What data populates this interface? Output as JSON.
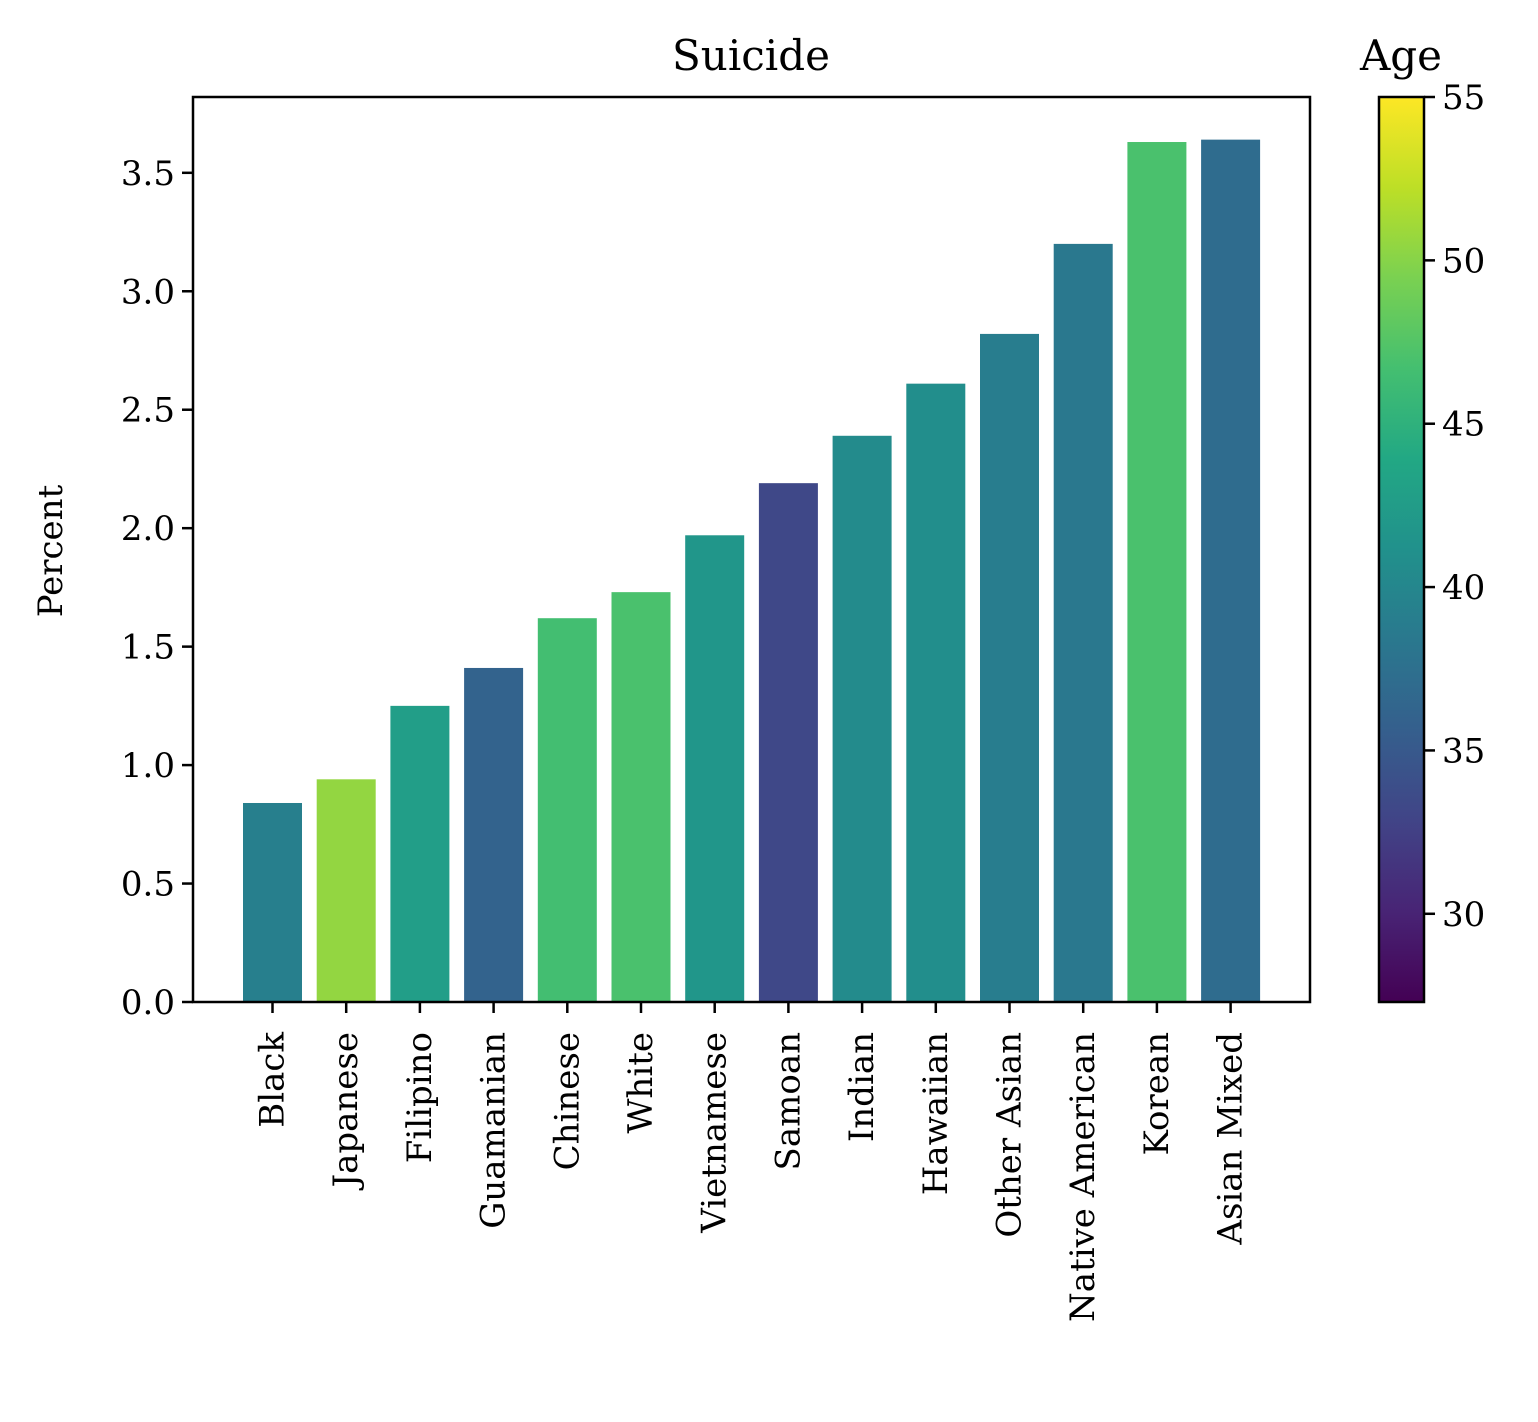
{
  "chart_data": {
    "type": "bar",
    "title": "Suicide",
    "xlabel": "",
    "ylabel": "Percent",
    "ylim": [
      0,
      3.82
    ],
    "yticks": [
      "0.0",
      "0.5",
      "1.0",
      "1.5",
      "2.0",
      "2.5",
      "3.0",
      "3.5"
    ],
    "grid": false,
    "categories": [
      "Black",
      "Japanese",
      "Filipino",
      "Guamanian",
      "Chinese",
      "White",
      "Vietnamese",
      "Samoan",
      "Indian",
      "Hawaiian",
      "Other Asian",
      "Native American",
      "Korean",
      "Asian Mixed"
    ],
    "values": [
      0.84,
      0.94,
      1.25,
      1.41,
      1.62,
      1.73,
      1.97,
      2.19,
      2.39,
      2.61,
      2.82,
      3.2,
      3.63,
      3.64
    ],
    "age": [
      39.2,
      50.5,
      42.7,
      36.0,
      46.6,
      47.0,
      41.8,
      33.3,
      40.5,
      40.8,
      38.9,
      38.4,
      47.0,
      37.0
    ],
    "colorbar": {
      "label": "Age",
      "range": [
        27.3,
        55.0
      ],
      "ticks": [
        "30",
        "35",
        "40",
        "45",
        "50",
        "55"
      ],
      "colormap": "viridis",
      "colormap_stops": [
        "#440154",
        "#482475",
        "#414487",
        "#355f8d",
        "#2a788e",
        "#21918c",
        "#22a884",
        "#44bf70",
        "#7ad151",
        "#bddf26",
        "#fde725"
      ]
    }
  }
}
